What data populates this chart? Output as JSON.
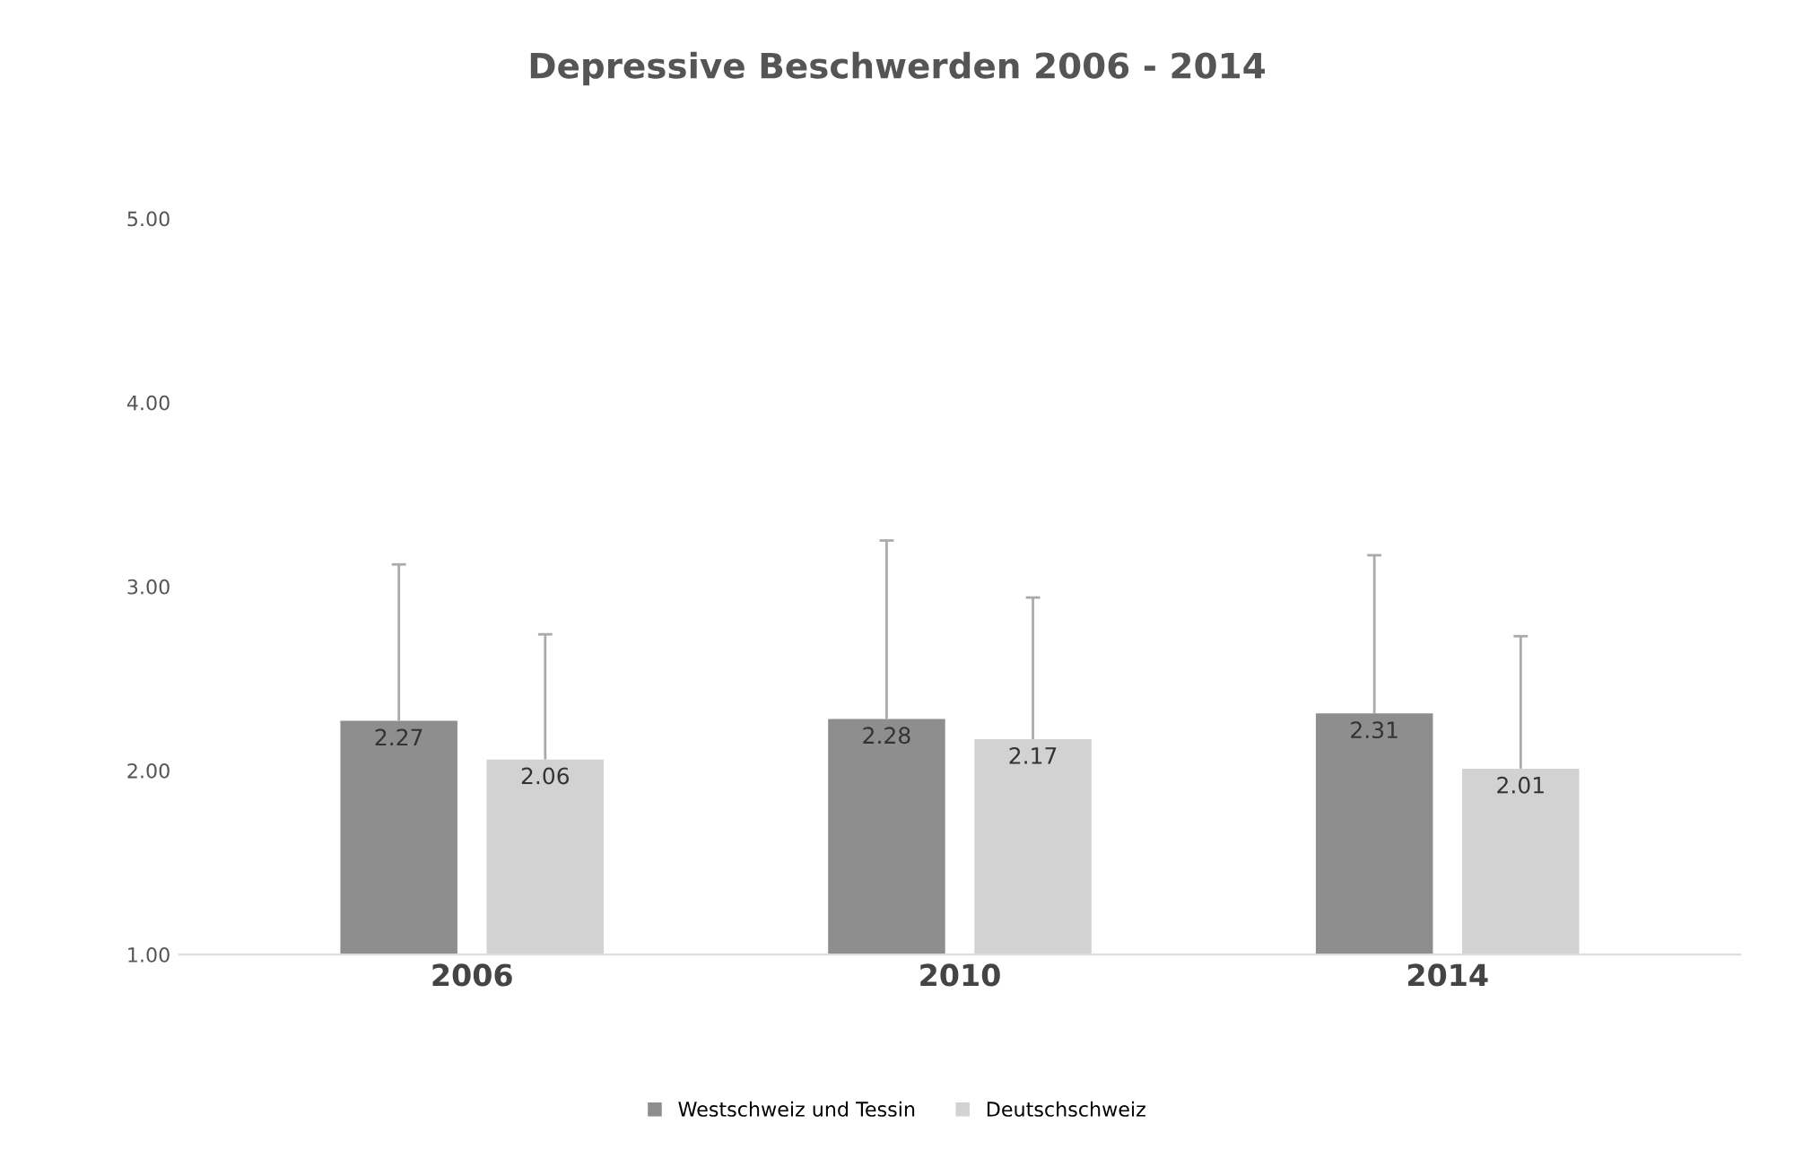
{
  "chart_data": {
    "type": "bar",
    "title": "Depressive Beschwerden 2006 - 2014",
    "categories": [
      "2006",
      "2010",
      "2014"
    ],
    "series": [
      {
        "name": "Westschweiz und Tessin",
        "color": "#8e8e8e",
        "values": [
          2.27,
          2.28,
          2.31
        ],
        "errors": [
          [
            2.27,
            3.12
          ],
          [
            2.28,
            3.25
          ],
          [
            2.31,
            3.17
          ]
        ]
      },
      {
        "name": "Deutschschweiz",
        "color": "#d2d2d2",
        "values": [
          2.06,
          2.17,
          2.01
        ],
        "errors": [
          [
            2.06,
            2.74
          ],
          [
            2.17,
            2.94
          ],
          [
            2.01,
            2.73
          ]
        ]
      }
    ],
    "ylim": [
      1,
      5
    ],
    "yticks": [
      {
        "value": 1,
        "label": "1.00"
      },
      {
        "value": 2,
        "label": "2.00"
      },
      {
        "value": 3,
        "label": "3.00"
      },
      {
        "value": 4,
        "label": "4.00"
      },
      {
        "value": 5,
        "label": "5.00"
      }
    ],
    "data_labels": true,
    "grid": false,
    "legend": "bottom"
  }
}
